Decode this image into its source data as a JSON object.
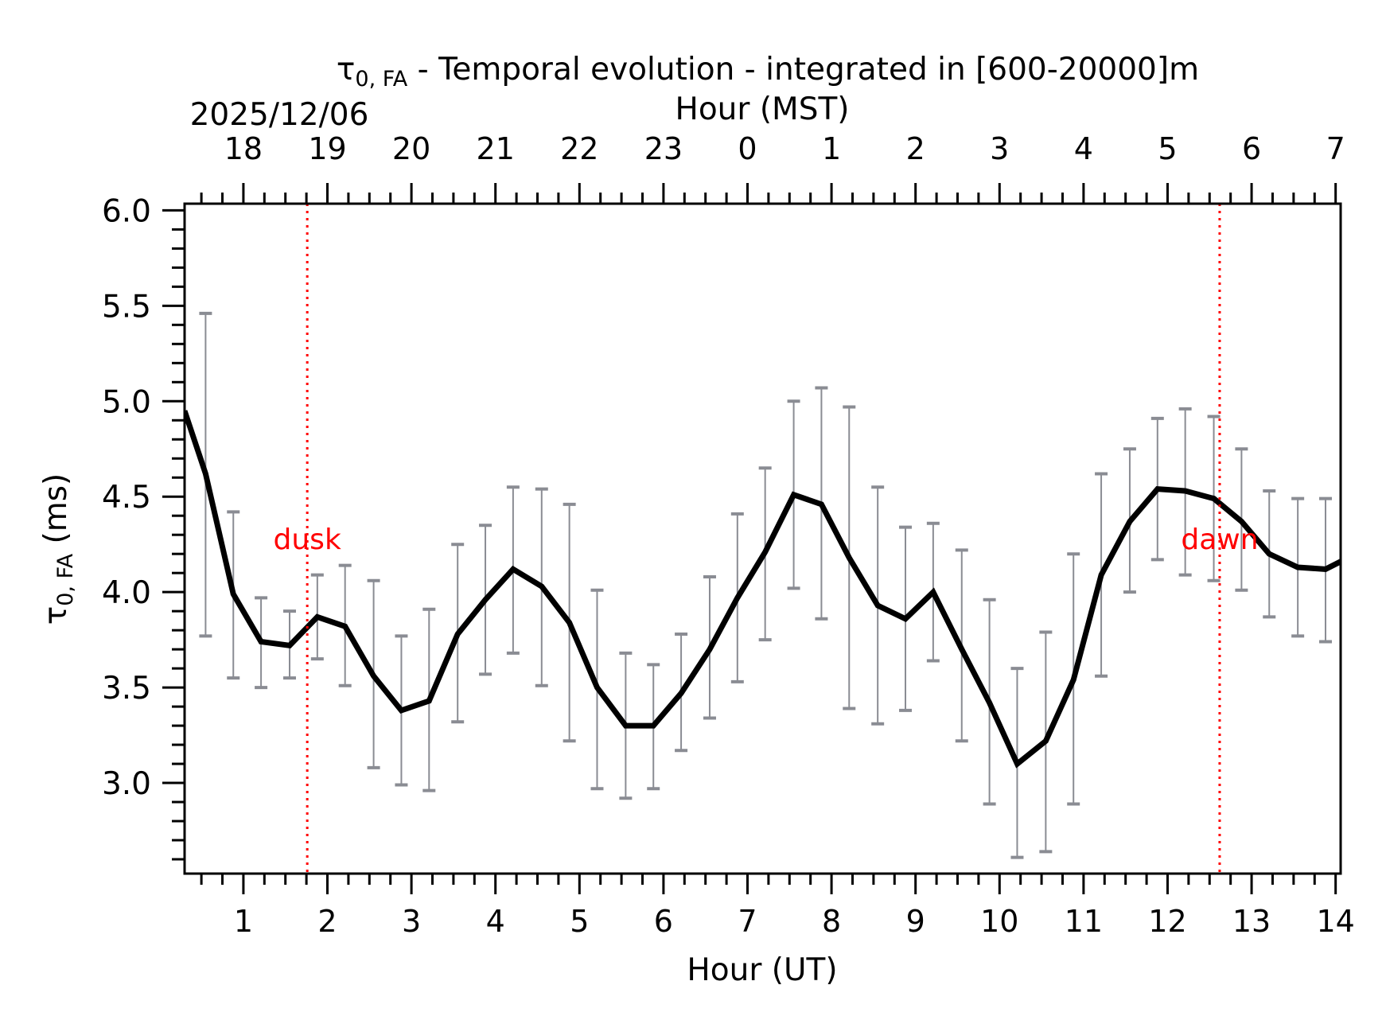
{
  "chart_data": {
    "type": "line",
    "title_prefix": "τ",
    "title_sub": "0, FA",
    "title_suffix": " - Temporal evolution - integrated in [600-20000]m",
    "date_label": "2025/12/06",
    "xlabel": "Hour (UT)",
    "x2label": "Hour (MST)",
    "ylabel_symbol": "τ",
    "ylabel_sub": "0, FA",
    "ylabel_suffix": " (ms)",
    "xlim": [
      0.3,
      14.06
    ],
    "ylim": [
      2.525,
      6.035
    ],
    "x_ticks": [
      1,
      2,
      3,
      4,
      5,
      6,
      7,
      8,
      9,
      10,
      11,
      12,
      13,
      14
    ],
    "x_tick_labels": [
      "1",
      "2",
      "3",
      "4",
      "5",
      "6",
      "7",
      "8",
      "9",
      "10",
      "11",
      "12",
      "13",
      "14"
    ],
    "x_minor_step": 0.25,
    "x2_ticks_ut": [
      1,
      2,
      3,
      4,
      5,
      6,
      7,
      8,
      9,
      10,
      11,
      12,
      13,
      14
    ],
    "x2_tick_labels": [
      "18",
      "19",
      "20",
      "21",
      "22",
      "23",
      "0",
      "1",
      "2",
      "3",
      "4",
      "5",
      "6",
      "7"
    ],
    "y_ticks": [
      3.0,
      3.5,
      4.0,
      4.5,
      5.0,
      5.5,
      6.0
    ],
    "y_tick_labels": [
      "3.0",
      "3.5",
      "4.0",
      "4.5",
      "5.0",
      "5.5",
      "6.0"
    ],
    "y_minor_step": 0.1,
    "grid": false,
    "annotations": [
      {
        "text": "dusk",
        "x": 1.76,
        "color": "#ff0000",
        "label_y": 4.28
      },
      {
        "text": "dawn",
        "x": 12.62,
        "color": "#ff0000",
        "label_y": 4.28
      }
    ],
    "series": [
      {
        "name": "tau0_FA",
        "color": "#000000",
        "errorbar_color": "#8a8c93",
        "x": [
          0.3,
          0.55,
          0.88,
          1.21,
          1.55,
          1.88,
          2.21,
          2.55,
          2.88,
          3.21,
          3.55,
          3.88,
          4.21,
          4.55,
          4.88,
          5.21,
          5.55,
          5.88,
          6.21,
          6.55,
          6.88,
          7.21,
          7.55,
          7.88,
          8.21,
          8.55,
          8.88,
          9.21,
          9.55,
          9.88,
          10.21,
          10.55,
          10.88,
          11.21,
          11.55,
          11.88,
          12.21,
          12.55,
          12.88,
          13.21,
          13.55,
          13.88,
          14.06
        ],
        "y": [
          4.95,
          4.62,
          3.99,
          3.74,
          3.72,
          3.87,
          3.82,
          3.56,
          3.38,
          3.43,
          3.78,
          3.96,
          4.12,
          4.03,
          3.84,
          3.5,
          3.3,
          3.3,
          3.47,
          3.7,
          3.97,
          4.21,
          4.51,
          4.46,
          4.18,
          3.93,
          3.86,
          4.0,
          3.7,
          3.42,
          3.1,
          3.22,
          3.54,
          4.09,
          4.37,
          4.54,
          4.53,
          4.49,
          4.37,
          4.2,
          4.13,
          4.12,
          4.16
        ],
        "err_upper": [
          null,
          5.46,
          4.42,
          3.97,
          3.9,
          4.09,
          4.14,
          4.06,
          3.77,
          3.91,
          4.25,
          4.35,
          4.55,
          4.54,
          4.46,
          4.01,
          3.68,
          3.62,
          3.78,
          4.08,
          4.41,
          4.65,
          5.0,
          5.07,
          4.97,
          4.55,
          4.34,
          4.36,
          4.22,
          3.96,
          3.6,
          3.79,
          4.2,
          4.62,
          4.75,
          4.91,
          4.96,
          4.92,
          4.75,
          4.53,
          4.49,
          4.49,
          null
        ],
        "err_lower": [
          null,
          3.77,
          3.55,
          3.5,
          3.55,
          3.65,
          3.51,
          3.08,
          2.99,
          2.96,
          3.32,
          3.57,
          3.68,
          3.51,
          3.22,
          2.97,
          2.92,
          2.97,
          3.17,
          3.34,
          3.53,
          3.75,
          4.02,
          3.86,
          3.39,
          3.31,
          3.38,
          3.64,
          3.22,
          2.89,
          2.61,
          2.64,
          2.89,
          3.56,
          4.0,
          4.17,
          4.09,
          4.06,
          4.01,
          3.87,
          3.77,
          3.74,
          null
        ]
      }
    ]
  }
}
